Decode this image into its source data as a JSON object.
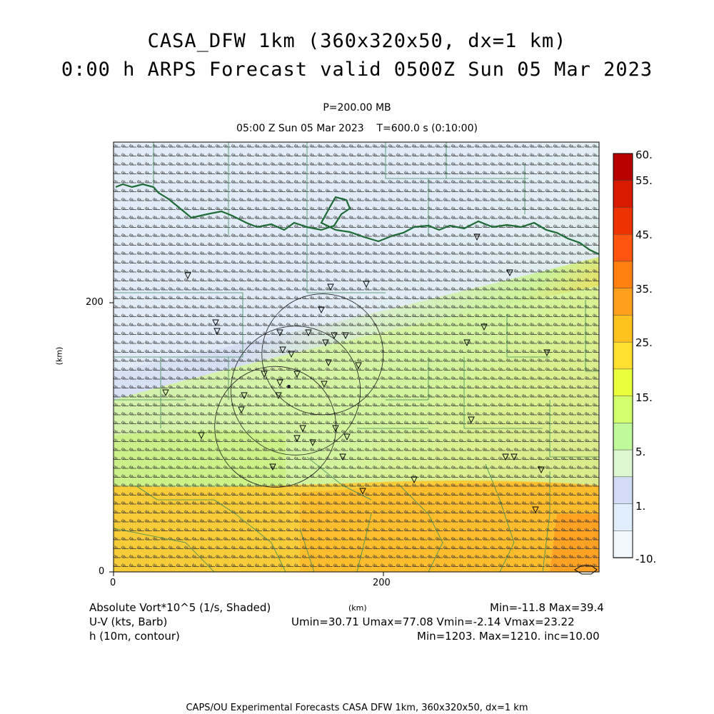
{
  "header": {
    "title_line1": "CASA_DFW 1km (360x320x50, dx=1 km)",
    "title_line2": "0:00 h ARPS Forecast valid 0500Z Sun 05 Mar 2023",
    "level": "P=200.00 MB",
    "time_info": "05:00 Z Sun 05 Mar 2023    T=600.0 s (0:10:00)"
  },
  "axes": {
    "x_ticks": [
      "0",
      "200"
    ],
    "y_ticks": [
      "0",
      "200"
    ],
    "x_unit": "(km)",
    "y_unit": "(km)",
    "x_range_km": [
      0,
      360
    ],
    "y_range_km": [
      0,
      320
    ]
  },
  "colorbar": {
    "labels": [
      "60.",
      "55.",
      "45.",
      "35.",
      "25.",
      "15.",
      "5.",
      "1.",
      "-10."
    ],
    "colors": [
      "#b80000",
      "#d81a00",
      "#ee3300",
      "#ff5511",
      "#ff7f0f",
      "#ffa01c",
      "#ffc21f",
      "#ffe02e",
      "#eaff3c",
      "#d2ff6e",
      "#c0f99a",
      "#dcf7d0",
      "#d2dcf4",
      "#dfeefa",
      "#f0f8fe"
    ]
  },
  "fields": {
    "shaded_label": "Absolute Vort*10^5 (1/s, Shaded)",
    "shaded_stats": "Min=-11.8 Max=39.4",
    "barb_label": "U-V (kts, Barb)",
    "barb_stats": "Umin=30.71 Umax=77.08 Vmin=-2.14 Vmax=23.22",
    "contour_label": "h (10m, contour)",
    "contour_stats": "Min=1203. Max=1210. inc=10.00"
  },
  "footer": "CAPS/OU Experimental Forecasts  CASA DFW 1km, 360x320x50, dx=1 km",
  "map": {
    "border_color": "#1f6b35",
    "radar_rings": [
      {
        "x_km": 155,
        "y_km": 162,
        "r_km": 45
      },
      {
        "x_km": 135,
        "y_km": 135,
        "r_km": 48
      },
      {
        "x_km": 120,
        "y_km": 108,
        "r_km": 45
      }
    ],
    "radar_center_km": [
      130,
      138
    ]
  }
}
